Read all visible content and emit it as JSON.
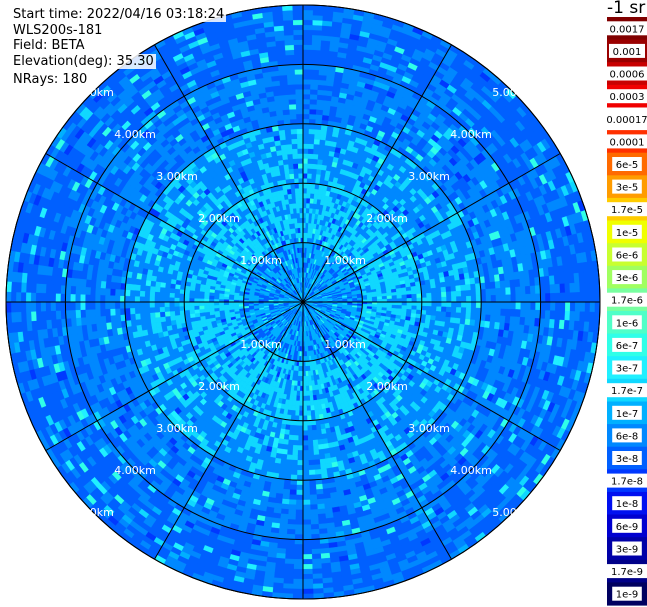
{
  "info": {
    "start_time": "Start time: 2022/04/16 03:18:24",
    "radar": "WLS200s-181",
    "field": "Field: BETA",
    "elevation": "Elevation(deg): 35.30",
    "nrays": "NRays: 180"
  },
  "units": "-1 sr",
  "chart_data": {
    "type": "heatmap",
    "projection": "polar (PPI)",
    "field": "BETA",
    "n_rays": 180,
    "elevation_deg": 35.3,
    "range_rings_km": [
      1,
      2,
      3,
      4,
      5
    ],
    "ring_labels": [
      "1.00km",
      "2.00km",
      "3.00km",
      "4.00km",
      "5.00km"
    ],
    "max_range_km": 5.0,
    "spokes_deg": [
      0,
      30,
      60,
      90,
      120,
      150,
      180,
      210,
      240,
      270,
      300,
      330
    ],
    "colorbar": {
      "scale": "log",
      "ticks": [
        "0.0017",
        "0.001",
        "0.0006",
        "0.0003",
        "0.00017",
        "0.0001",
        "6e-5",
        "3e-5",
        "1.7e-5",
        "1e-5",
        "6e-6",
        "3e-6",
        "1.7e-6",
        "1e-6",
        "6e-7",
        "3e-7",
        "1.7e-7",
        "1e-7",
        "6e-8",
        "3e-8",
        "1.7e-8",
        "1e-8",
        "6e-9",
        "3e-9",
        "1.7e-9",
        "1e-9"
      ],
      "colors": [
        "#800000",
        "#9a0000",
        "#c80000",
        "#f00000",
        "#ffffff",
        "#ff3000",
        "#ff6a00",
        "#ff9c00",
        "#ffcc00",
        "#f0ff00",
        "#c8ff30",
        "#a0ff60",
        "#78ffa0",
        "#50ffc8",
        "#30ffe8",
        "#20f0ff",
        "#10d8ff",
        "#00b0ff",
        "#0088ff",
        "#0060ff",
        "#0038ff",
        "#0010f0",
        "#0000d0",
        "#0000a8",
        "#000088",
        "#000060"
      ]
    },
    "value_profile": [
      {
        "range_km": 0.5,
        "dominant": "1e-7",
        "secondary": "3e-8"
      },
      {
        "range_km": 1.5,
        "dominant": "1.7e-7",
        "secondary": "6e-8"
      },
      {
        "range_km": 2.5,
        "dominant": "6e-8",
        "secondary": "1.7e-7"
      },
      {
        "range_km": 3.5,
        "dominant": "6e-8",
        "secondary": "3e-8"
      },
      {
        "range_km": 4.5,
        "dominant": "3e-8",
        "secondary": "6e-8"
      }
    ]
  }
}
